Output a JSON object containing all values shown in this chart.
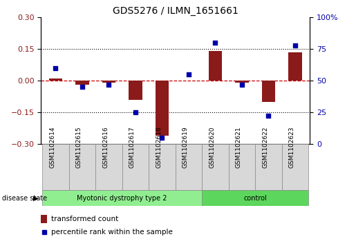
{
  "title": "GDS5276 / ILMN_1651661",
  "samples": [
    "GSM1102614",
    "GSM1102615",
    "GSM1102616",
    "GSM1102617",
    "GSM1102618",
    "GSM1102619",
    "GSM1102620",
    "GSM1102621",
    "GSM1102622",
    "GSM1102623"
  ],
  "bar_values": [
    0.01,
    -0.02,
    -0.01,
    -0.09,
    -0.26,
    0.0,
    0.14,
    -0.01,
    -0.1,
    0.135
  ],
  "dot_values": [
    60,
    45,
    47,
    25,
    5,
    55,
    80,
    47,
    22,
    78
  ],
  "left_ylim": [
    -0.3,
    0.3
  ],
  "right_ylim": [
    0,
    100
  ],
  "left_yticks": [
    -0.3,
    -0.15,
    0.0,
    0.15,
    0.3
  ],
  "right_yticks": [
    0,
    25,
    50,
    75,
    100
  ],
  "bar_color": "#8B1A1A",
  "dot_color": "#0000AA",
  "dashed_line_color": "#CC0000",
  "group1_label": "Myotonic dystrophy type 2",
  "group2_label": "control",
  "group1_color": "#90EE90",
  "group2_color": "#5CD65C",
  "disease_state_label": "disease state",
  "legend_bar_label": "transformed count",
  "legend_dot_label": "percentile rank within the sample",
  "n_group1": 6,
  "n_group2": 4,
  "sample_bg_color": "#D8D8D8",
  "title_fontsize": 10,
  "tick_fontsize": 8,
  "label_fontsize": 6.5
}
